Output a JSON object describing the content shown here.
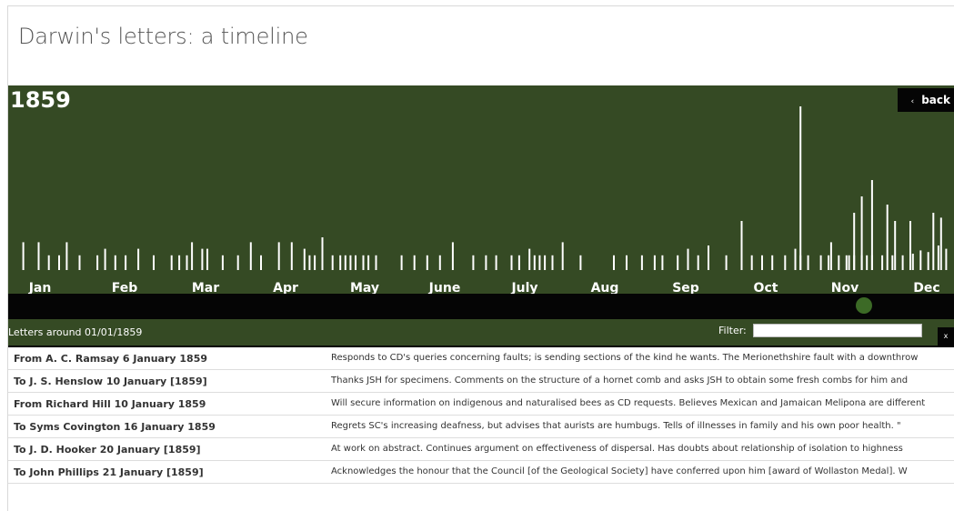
{
  "page": {
    "title": "Darwin's letters: a timeline"
  },
  "timeline": {
    "year": "1859",
    "back_label": "back",
    "back_chevron": "‹",
    "months": [
      "Jan",
      "Feb",
      "Mar",
      "Apr",
      "May",
      "June",
      "July",
      "Aug",
      "Sep",
      "Oct",
      "Nov",
      "Dec"
    ]
  },
  "chart_data": {
    "type": "bar",
    "title": "1859",
    "xlabel": "",
    "ylabel": "",
    "categories": [
      "Jan",
      "Feb",
      "Mar",
      "Apr",
      "May",
      "June",
      "July",
      "Aug",
      "Sep",
      "Oct",
      "Nov",
      "Dec"
    ],
    "series": [
      {
        "values": [
          [
            2,
            0.17
          ],
          [
            8,
            0.17
          ],
          [
            12,
            0.09
          ],
          [
            16,
            0.09
          ],
          [
            19,
            0.17
          ],
          [
            24,
            0.09
          ],
          [
            31,
            0.09
          ],
          [
            34,
            0.13
          ],
          [
            38,
            0.09
          ],
          [
            42,
            0.09
          ],
          [
            47,
            0.13
          ],
          [
            53,
            0.09
          ],
          [
            60,
            0.09
          ],
          [
            63,
            0.09
          ],
          [
            66,
            0.09
          ],
          [
            68,
            0.17
          ],
          [
            72,
            0.13
          ],
          [
            74,
            0.13
          ],
          [
            80,
            0.09
          ],
          [
            86,
            0.09
          ],
          [
            91,
            0.17
          ],
          [
            95,
            0.09
          ],
          [
            102,
            0.17
          ],
          [
            107,
            0.17
          ],
          [
            112,
            0.13
          ],
          [
            114,
            0.09
          ],
          [
            116,
            0.09
          ],
          [
            119,
            0.2
          ],
          [
            123,
            0.09
          ],
          [
            126,
            0.09
          ],
          [
            128,
            0.09
          ],
          [
            130,
            0.09
          ],
          [
            132,
            0.09
          ],
          [
            135,
            0.09
          ],
          [
            137,
            0.09
          ],
          [
            140,
            0.09
          ],
          [
            150,
            0.09
          ],
          [
            155,
            0.09
          ],
          [
            160,
            0.09
          ],
          [
            165,
            0.09
          ],
          [
            170,
            0.17
          ],
          [
            178,
            0.09
          ],
          [
            183,
            0.09
          ],
          [
            187,
            0.09
          ],
          [
            193,
            0.09
          ],
          [
            196,
            0.09
          ],
          [
            200,
            0.13
          ],
          [
            202,
            0.09
          ],
          [
            204,
            0.09
          ],
          [
            206,
            0.09
          ],
          [
            209,
            0.09
          ],
          [
            213,
            0.17
          ],
          [
            220,
            0.09
          ],
          [
            233,
            0.09
          ],
          [
            238,
            0.09
          ],
          [
            244,
            0.09
          ],
          [
            249,
            0.09
          ],
          [
            252,
            0.09
          ],
          [
            258,
            0.09
          ],
          [
            262,
            0.13
          ],
          [
            266,
            0.09
          ],
          [
            270,
            0.15
          ],
          [
            277,
            0.09
          ],
          [
            283,
            0.09
          ],
          [
            287,
            0.09
          ],
          [
            291,
            0.09
          ],
          [
            295,
            0.09
          ],
          [
            300,
            0.09
          ],
          [
            304,
            0.13
          ],
          [
            306,
            0.09
          ],
          [
            309,
            0.09
          ],
          [
            314,
            0.09
          ],
          [
            317,
            0.09
          ],
          [
            318,
            0.17
          ],
          [
            321,
            0.09
          ],
          [
            324,
            0.09
          ],
          [
            325,
            0.09
          ],
          [
            327,
            0.09
          ],
          [
            330,
            0.09
          ],
          [
            332,
            0.09
          ],
          [
            334,
            0.09
          ],
          [
            338,
            0.09
          ],
          [
            342,
            0.09
          ],
          [
            346,
            0.09
          ],
          [
            350,
            0.1
          ],
          [
            353,
            0.12
          ],
          [
            356,
            0.11
          ],
          [
            360,
            0.15
          ],
          [
            363,
            0.13
          ]
        ]
      }
    ],
    "peak": {
      "date": "1859-11-02",
      "value": 1.0
    },
    "legend": "none",
    "grid": false
  },
  "slider": {
    "position": 0.9
  },
  "filterbar": {
    "around_text": "Letters around 01/01/1859",
    "filter_label": "Filter:",
    "filter_value": "",
    "clear_label": "x"
  },
  "letters": [
    {
      "who": "From A. C. Ramsay   6 January 1859",
      "summary": "Responds to CD's queries concerning faults; is sending sections of the kind he wants. The Merionethshire fault with a downthrow"
    },
    {
      "who": "To J. S. Henslow   10 January [1859]",
      "summary": "Thanks JSH for specimens. Comments on the structure of a hornet comb and asks JSH to obtain some fresh combs for him and"
    },
    {
      "who": "From Richard Hill   10 January 1859",
      "summary": "Will secure information on indigenous and naturalised bees as CD requests. Believes Mexican and Jamaican Melipona are different"
    },
    {
      "who": "To Syms Covington   16 January 1859",
      "summary": "Regrets SC's increasing deafness, but advises that aurists are humbugs. Tells of illnesses in family and his own poor health. \""
    },
    {
      "who": "To J. D. Hooker   20 January [1859]",
      "summary": "At work on abstract. Continues argument on effectiveness of dispersal. Has doubts about relationship of isolation to highness"
    },
    {
      "who": "To John Phillips   21 January [1859]",
      "summary": "Acknowledges the honour that the Council [of the Geological Society] have conferred upon him [award of Wollaston Medal]. W"
    }
  ],
  "colors": {
    "timeline_bg": "#354a24",
    "bar": "#ffffff",
    "slider_bg": "#050505",
    "handle": "#3c6a26"
  }
}
